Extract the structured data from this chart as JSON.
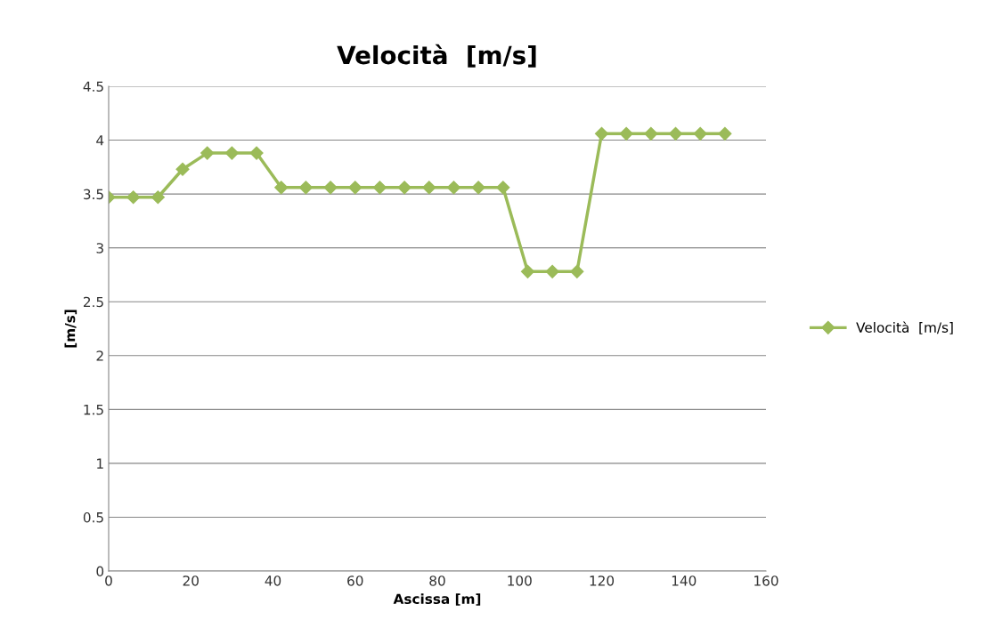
{
  "chart_data": {
    "type": "line",
    "title": "Velocità  [m/s]",
    "xlabel": "Ascissa [m]",
    "ylabel": "[m/s]",
    "x": [
      0,
      6,
      12,
      18,
      24,
      30,
      36,
      42,
      48,
      54,
      60,
      66,
      72,
      78,
      84,
      90,
      96,
      102,
      108,
      114,
      120,
      126,
      132,
      138,
      144,
      150
    ],
    "series": [
      {
        "name": "Velocità  [m/s]",
        "color": "#9bbb59",
        "values": [
          3.47,
          3.47,
          3.47,
          3.73,
          3.88,
          3.88,
          3.88,
          3.56,
          3.56,
          3.56,
          3.56,
          3.56,
          3.56,
          3.56,
          3.56,
          3.56,
          3.56,
          2.78,
          2.78,
          2.78,
          4.06,
          4.06,
          4.06,
          4.06,
          4.06,
          4.06
        ]
      }
    ],
    "xlim": [
      0,
      160
    ],
    "xticks": [
      0,
      20,
      40,
      60,
      80,
      100,
      120,
      140,
      160
    ],
    "ylim": [
      0,
      4.5
    ],
    "yticks": [
      0,
      0.5,
      1,
      1.5,
      2,
      2.5,
      3,
      3.5,
      4,
      4.5
    ],
    "grid": "y",
    "legend": "right",
    "marker": "diamond",
    "line_style": "solid"
  }
}
